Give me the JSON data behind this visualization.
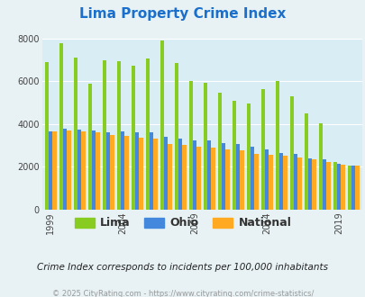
{
  "title": "Lima Property Crime Index",
  "title_color": "#1a6fcc",
  "years": [
    1999,
    2000,
    2001,
    2002,
    2003,
    2004,
    2005,
    2006,
    2007,
    2008,
    2009,
    2010,
    2011,
    2012,
    2013,
    2014,
    2015,
    2016,
    2017,
    2018,
    2019,
    2020
  ],
  "lima": [
    6900,
    7800,
    7100,
    5900,
    7000,
    6950,
    6750,
    7050,
    7900,
    6850,
    6000,
    5950,
    5450,
    5100,
    4950,
    5650,
    6000,
    5300,
    4500,
    4050,
    2200,
    2050
  ],
  "ohio": [
    3650,
    3800,
    3750,
    3700,
    3600,
    3650,
    3600,
    3600,
    3400,
    3300,
    3250,
    3250,
    3100,
    3050,
    2950,
    2800,
    2650,
    2600,
    2400,
    2350,
    2150,
    2050
  ],
  "national": [
    3650,
    3700,
    3650,
    3600,
    3500,
    3450,
    3350,
    3300,
    3050,
    3000,
    2950,
    2900,
    2800,
    2750,
    2600,
    2550,
    2500,
    2450,
    2350,
    2200,
    2100,
    2050
  ],
  "lima_color": "#88cc22",
  "ohio_color": "#4488dd",
  "national_color": "#ffaa22",
  "fig_bg_color": "#e8f2f5",
  "plot_bg_color": "#d8edf4",
  "ylim": [
    0,
    8000
  ],
  "yticks": [
    0,
    2000,
    4000,
    6000,
    8000
  ],
  "xtick_years": [
    1999,
    2004,
    2009,
    2014,
    2019
  ],
  "footnote": "Crime Index corresponds to incidents per 100,000 inhabitants",
  "copyright": "© 2025 CityRating.com - https://www.cityrating.com/crime-statistics/",
  "footnote_color": "#222222",
  "copyright_color": "#999999",
  "footnote_fontsize": 7.5,
  "copyright_fontsize": 6.0,
  "title_fontsize": 11,
  "legend_fontsize": 9
}
